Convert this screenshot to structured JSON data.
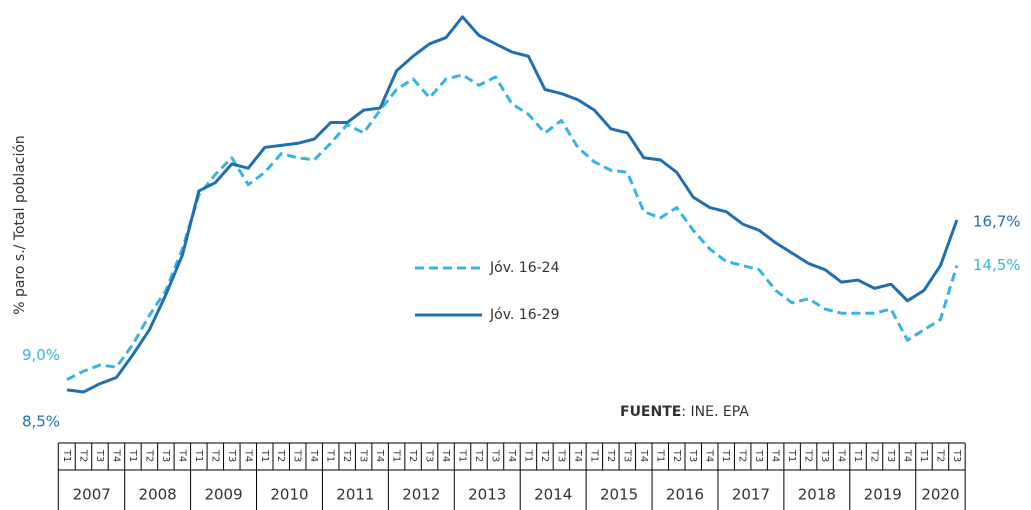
{
  "chart_data": {
    "type": "line",
    "y_label": "% paro s./ Total población",
    "source": {
      "label": "FUENTE",
      "text": ": INE. EPA"
    },
    "categories": [
      "T1",
      "T2",
      "T3",
      "T4",
      "T1",
      "T2",
      "T3",
      "T4",
      "T1",
      "T2",
      "T3",
      "T4",
      "T1",
      "T2",
      "T3",
      "T4",
      "T1",
      "T2",
      "T3",
      "T4",
      "T1",
      "T2",
      "T3",
      "T4",
      "T1",
      "T2",
      "T3",
      "T4",
      "T1",
      "T2",
      "T3",
      "T4",
      "T1",
      "T2",
      "T3",
      "T4",
      "T1",
      "T2",
      "T3",
      "T4",
      "T1",
      "T2",
      "T3",
      "T4",
      "T1",
      "T2",
      "T3",
      "T4",
      "T1",
      "T2",
      "T3",
      "T4",
      "T1",
      "T2",
      "T3"
    ],
    "years": [
      "2007",
      "2008",
      "2009",
      "2010",
      "2011",
      "2012",
      "2013",
      "2014",
      "2015",
      "2016",
      "2017",
      "2018",
      "2019",
      "2020"
    ],
    "ylim": [
      7,
      27
    ],
    "series": [
      {
        "name": "Jóv. 16-24",
        "color": "#33b5e5",
        "dash": true,
        "values": [
          9.0,
          9.4,
          9.7,
          9.6,
          10.7,
          12.1,
          13.3,
          15.3,
          17.9,
          18.9,
          19.7,
          18.4,
          19.0,
          19.9,
          19.7,
          19.6,
          20.4,
          21.3,
          20.9,
          22.0,
          23.0,
          23.5,
          22.6,
          23.5,
          23.7,
          23.2,
          23.6,
          22.3,
          21.8,
          20.9,
          21.5,
          20.2,
          19.5,
          19.1,
          19.0,
          17.1,
          16.8,
          17.3,
          16.2,
          15.3,
          14.7,
          14.5,
          14.3,
          13.3,
          12.7,
          12.9,
          12.4,
          12.2,
          12.2,
          12.2,
          12.4,
          10.9,
          11.4,
          11.9,
          14.5
        ],
        "value_labels": [
          "9,0%",
          null,
          null,
          null,
          null,
          null,
          null,
          null,
          null,
          null,
          null,
          null,
          null,
          null,
          null,
          null,
          null,
          null,
          null,
          null,
          null,
          null,
          null,
          null,
          null,
          null,
          null,
          null,
          null,
          null,
          null,
          null,
          null,
          null,
          null,
          null,
          null,
          null,
          null,
          null,
          null,
          null,
          null,
          null,
          null,
          null,
          null,
          null,
          null,
          null,
          null,
          null,
          null,
          null,
          "14,5%"
        ]
      },
      {
        "name": "Jóv. 16-29",
        "color": "#1f6fb2",
        "dash": false,
        "values": [
          8.5,
          8.4,
          8.8,
          9.1,
          10.2,
          11.4,
          13.1,
          15.0,
          18.1,
          18.5,
          19.4,
          19.2,
          20.2,
          20.3,
          20.4,
          20.6,
          21.4,
          21.4,
          22.0,
          22.1,
          23.9,
          24.6,
          25.2,
          25.5,
          26.5,
          25.6,
          25.2,
          24.8,
          24.6,
          23.0,
          22.8,
          22.5,
          22.0,
          21.1,
          20.9,
          19.7,
          19.6,
          19.0,
          17.8,
          17.3,
          17.1,
          16.5,
          16.2,
          15.6,
          15.1,
          14.6,
          14.3,
          13.7,
          13.8,
          13.4,
          13.6,
          12.8,
          13.3,
          14.5,
          16.7
        ],
        "value_labels": [
          "8,5%",
          null,
          null,
          null,
          null,
          null,
          null,
          null,
          null,
          null,
          null,
          null,
          null,
          null,
          null,
          null,
          null,
          null,
          null,
          null,
          null,
          null,
          null,
          null,
          null,
          null,
          null,
          null,
          null,
          null,
          null,
          null,
          null,
          null,
          null,
          null,
          null,
          null,
          null,
          null,
          null,
          null,
          null,
          null,
          null,
          null,
          null,
          null,
          null,
          null,
          null,
          null,
          null,
          null,
          "16,7%"
        ]
      }
    ]
  }
}
